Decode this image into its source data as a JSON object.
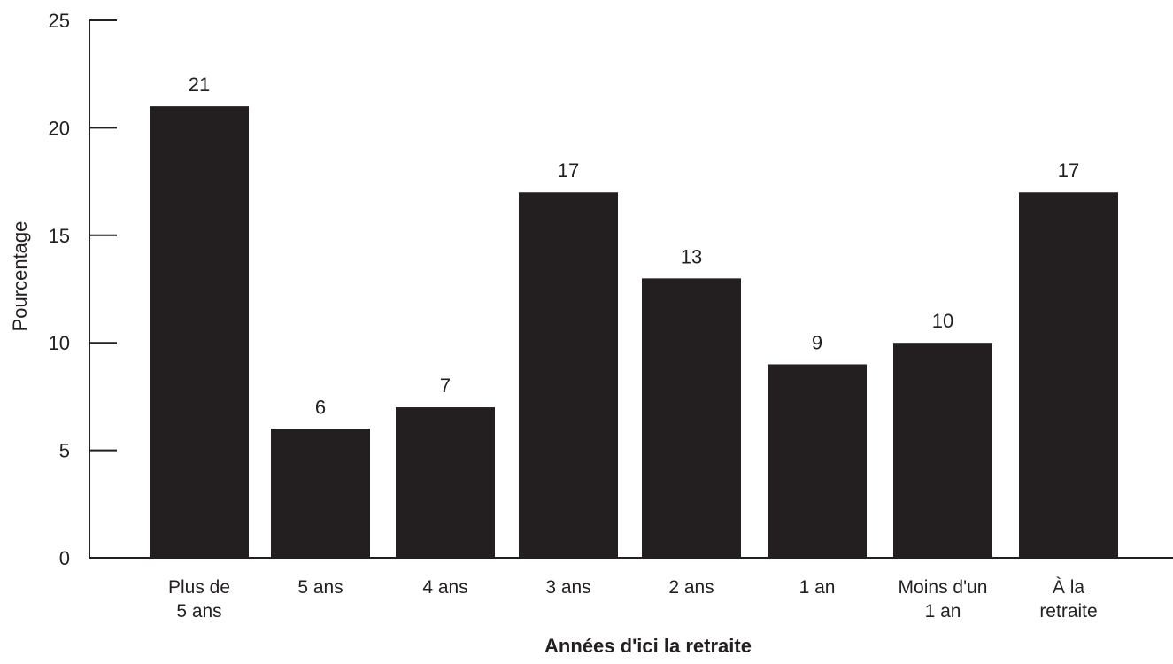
{
  "chart_data": {
    "type": "bar",
    "title": "",
    "xlabel": "Années d'ici la retraite",
    "ylabel": "Pourcentage",
    "categories": [
      [
        "Plus de",
        "5 ans"
      ],
      [
        "5 ans"
      ],
      [
        "4 ans"
      ],
      [
        "3 ans"
      ],
      [
        "2 ans"
      ],
      [
        "1 an"
      ],
      [
        "Moins d'un",
        "1 an"
      ],
      [
        "À la",
        "retraite"
      ]
    ],
    "values": [
      21,
      6,
      7,
      17,
      13,
      9,
      10,
      17
    ],
    "data_labels": [
      "21",
      "6",
      "7",
      "17",
      "13",
      "9",
      "10",
      "17"
    ],
    "ylim": [
      0,
      25
    ],
    "yticks": [
      0,
      5,
      10,
      15,
      20,
      25
    ],
    "grid": false,
    "legend": "none",
    "colors": {
      "bar": "#231f20",
      "axis": "#231f20",
      "text": "#231f20"
    }
  }
}
